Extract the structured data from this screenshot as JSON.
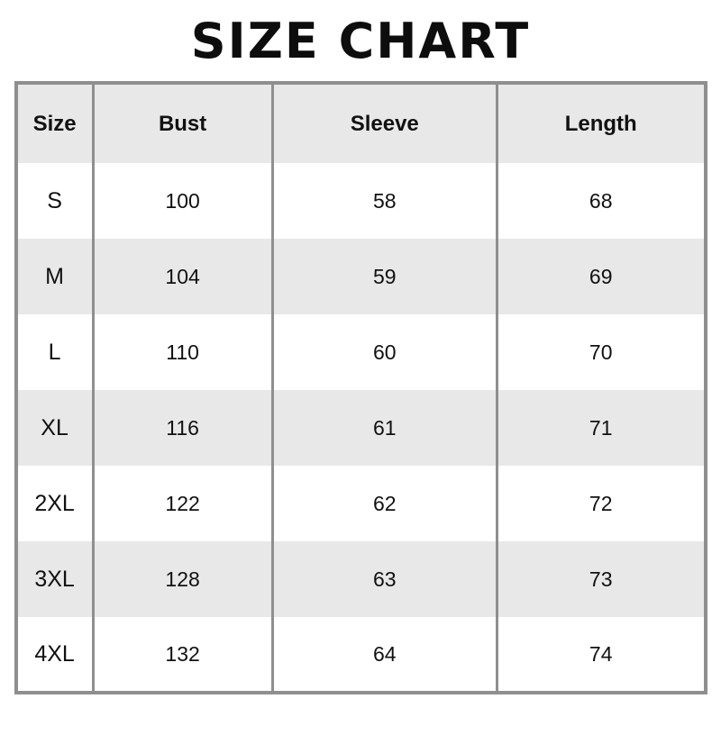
{
  "page": {
    "title": "SIZE CHART"
  },
  "chart_data": {
    "type": "table",
    "title": "SIZE CHART",
    "columns": [
      "Size",
      "Bust",
      "Sleeve",
      "Length"
    ],
    "rows": [
      [
        "S",
        100,
        58,
        68
      ],
      [
        "M",
        104,
        59,
        69
      ],
      [
        "L",
        110,
        60,
        70
      ],
      [
        "XL",
        116,
        61,
        71
      ],
      [
        "2XL",
        122,
        62,
        72
      ],
      [
        "3XL",
        128,
        63,
        73
      ],
      [
        "4XL",
        132,
        64,
        74
      ]
    ]
  },
  "colors": {
    "header_bg": "#e8e8e8",
    "alt_row_bg": "#e8e8e8",
    "border": "#8f8f8f",
    "text": "#111111"
  }
}
